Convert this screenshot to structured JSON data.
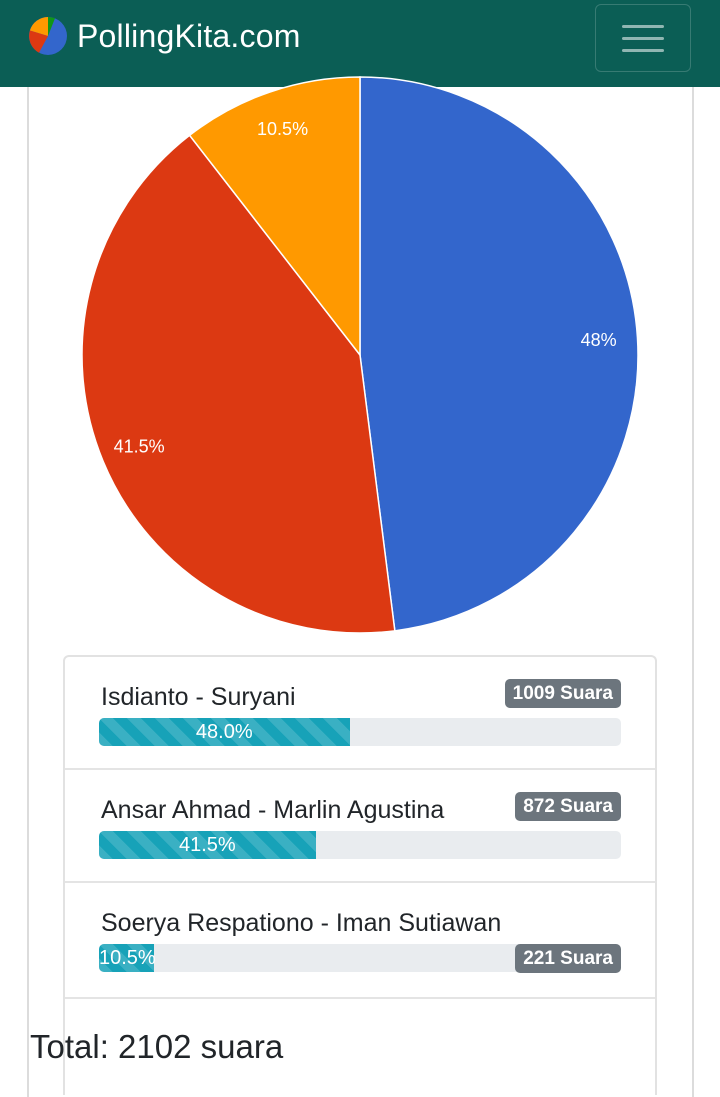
{
  "navbar": {
    "brand": "PollingKita.com",
    "logo_icon": "pie-chart-logo-icon",
    "menu_icon": "hamburger-menu-icon",
    "bg_color": "#0b5e55"
  },
  "chart_data": {
    "type": "pie",
    "slices": [
      {
        "value": 48.0,
        "label": "48%",
        "color": "#3366cc"
      },
      {
        "value": 41.5,
        "label": "41.5%",
        "color": "#dc3912"
      },
      {
        "value": 10.5,
        "label": "10.5%",
        "color": "#ff9900"
      }
    ]
  },
  "results": [
    {
      "name": "Isdianto - Suryani",
      "votes": "1009 Suara",
      "percent_label": "48.0%",
      "percent": 48.0
    },
    {
      "name": "Ansar Ahmad - Marlin Agustina",
      "votes": "872 Suara",
      "percent_label": "41.5%",
      "percent": 41.5
    },
    {
      "name": "Soerya Respationo - Iman Sutiawan",
      "votes": "221 Suara",
      "percent_label": "10.5%",
      "percent": 10.5
    }
  ],
  "total": "Total: 2102 suara",
  "colors": {
    "progress": "#17a2b8",
    "badge": "#6c757d"
  }
}
